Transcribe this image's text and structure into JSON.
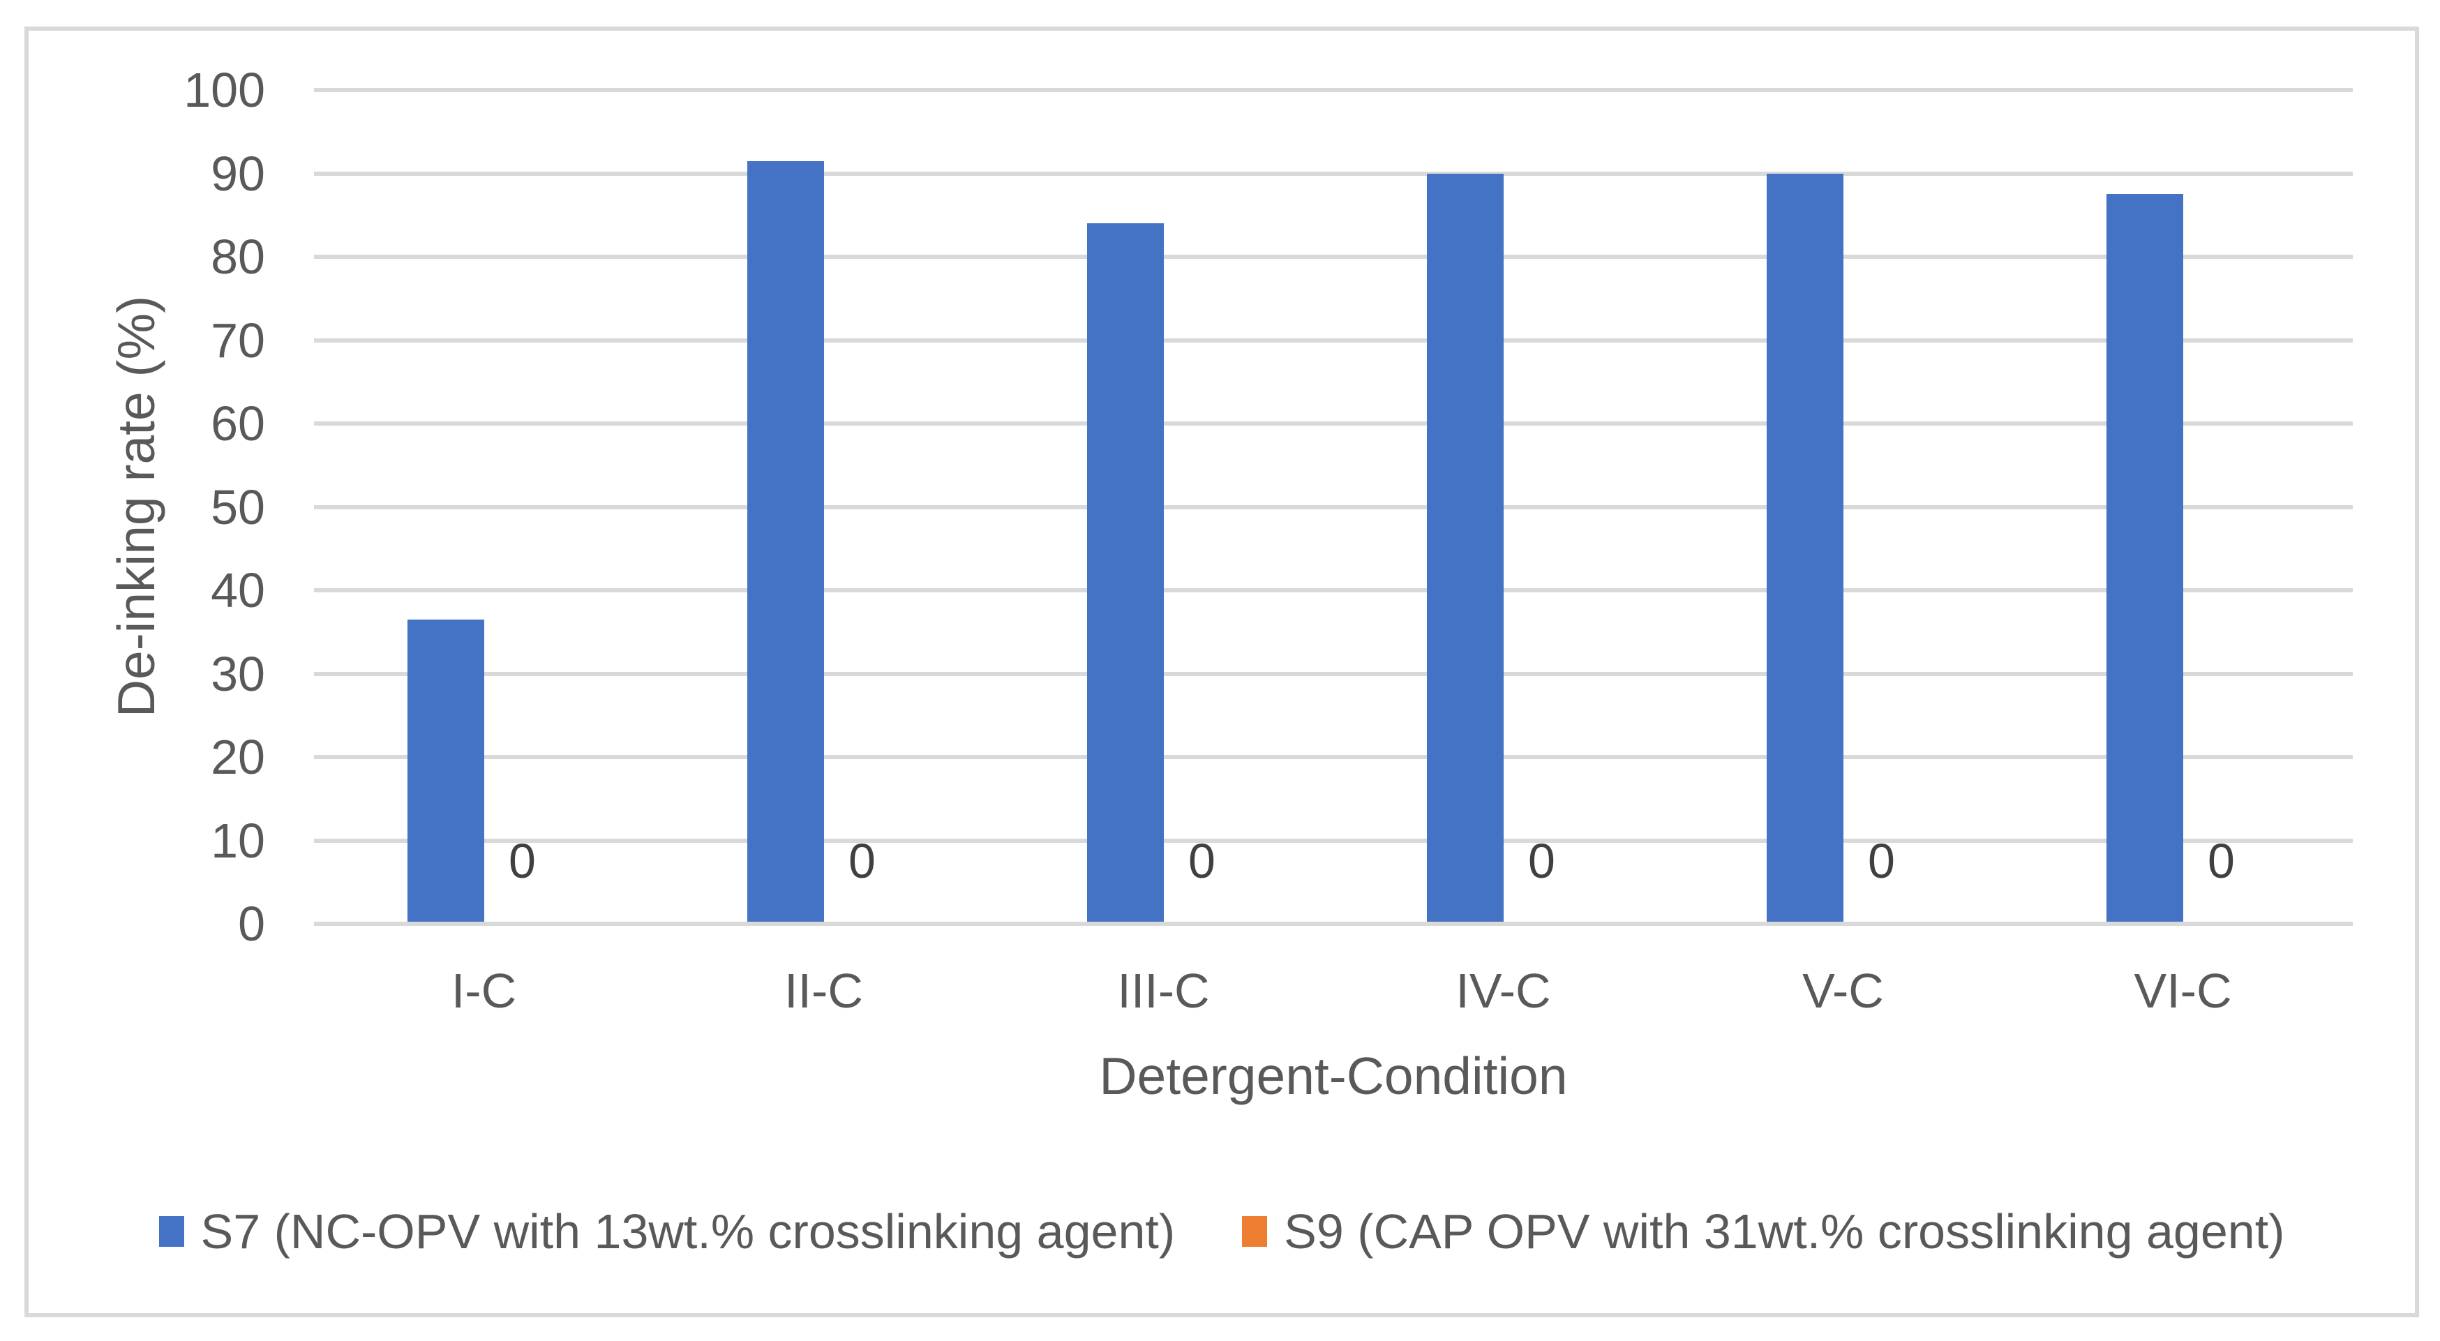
{
  "chart_data": {
    "type": "bar",
    "categories": [
      "I-C",
      "II-C",
      "III-C",
      "IV-C",
      "V-C",
      "VI-C"
    ],
    "series": [
      {
        "name": "S7 (NC-OPV with 13wt.% crosslinking agent)",
        "short_name": "S7",
        "color": "#4472C4",
        "values": [
          36.5,
          91.5,
          84,
          90,
          90,
          87.5
        ],
        "data_labels": null
      },
      {
        "name": "S9 (CAP OPV with 31wt.% crosslinking agent)",
        "short_name": "S9",
        "color": "#ED7D31",
        "values": [
          0,
          0,
          0,
          0,
          0,
          0
        ],
        "data_labels": [
          "0",
          "0",
          "0",
          "0",
          "0",
          "0"
        ]
      }
    ],
    "xlabel": "Detergent-Condition",
    "ylabel": "De-inking rate (%)",
    "ylim": [
      0,
      100
    ],
    "ytick_step": 10,
    "yticks": [
      "0",
      "10",
      "20",
      "30",
      "40",
      "50",
      "60",
      "70",
      "80",
      "90",
      "100"
    ],
    "grid": "horizontal",
    "legend_position": "bottom"
  },
  "colors": {
    "bar_blue": "#4472C4",
    "bar_orange": "#ED7D31",
    "gridline": "#D9D9D9",
    "chart_border": "#D9D9D9",
    "axis_text": "#595959",
    "data_label_text": "#404040",
    "background": "#FFFFFF"
  }
}
